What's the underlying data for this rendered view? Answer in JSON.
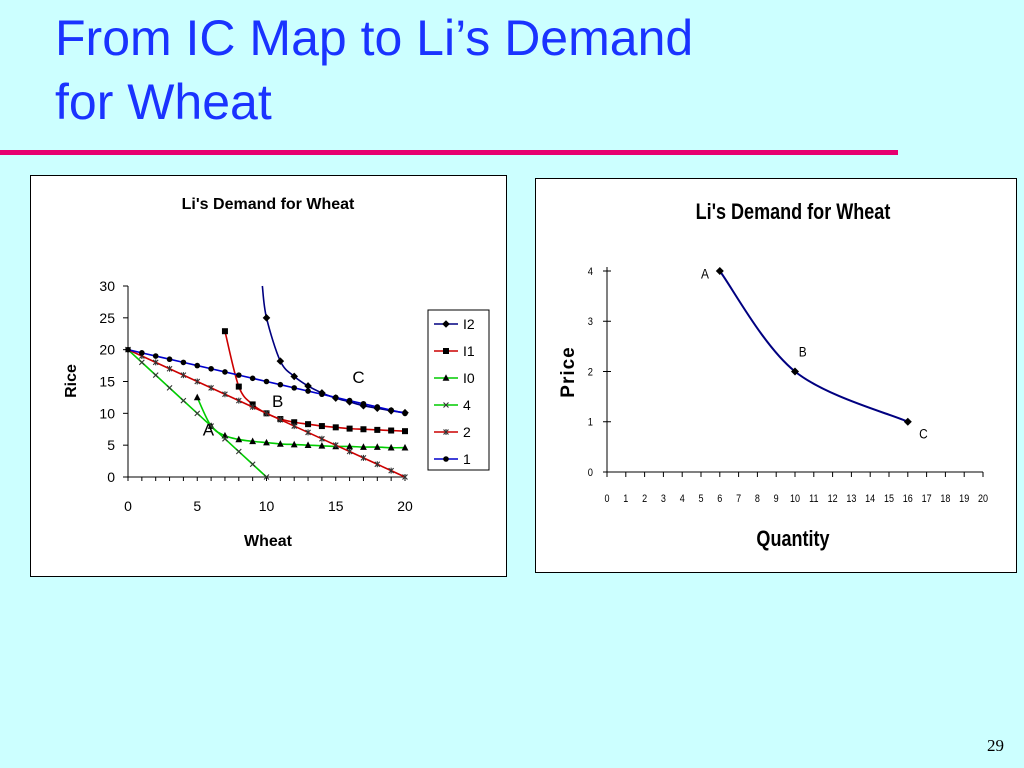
{
  "slide": {
    "title_line1": "From IC Map to Li’s Demand",
    "title_line2": "for Wheat",
    "page_number": "29",
    "title_color": "#1a33ff",
    "rule_color": "#e6006f",
    "background": "#ccffff"
  },
  "chart_data": [
    {
      "type": "line",
      "title": "Li's Demand for Wheat",
      "xlabel": "Wheat",
      "ylabel": "Rice",
      "xlim": [
        0,
        20
      ],
      "ylim": [
        0,
        30
      ],
      "xticks": [
        0,
        5,
        10,
        15,
        20
      ],
      "yticks": [
        0,
        5,
        10,
        15,
        20,
        25,
        30
      ],
      "legend": "right",
      "series": [
        {
          "name": "I2",
          "color": "#000080",
          "marker": "diamond",
          "smooth": true,
          "points": [
            [
              9.7,
              30
            ],
            [
              10,
              25
            ],
            [
              11,
              18.2
            ],
            [
              12,
              15.8
            ],
            [
              13,
              14.3
            ],
            [
              14,
              13.2
            ],
            [
              15,
              12.4
            ],
            [
              16,
              11.8
            ],
            [
              17,
              11.2
            ],
            [
              18,
              10.8
            ],
            [
              19,
              10.4
            ],
            [
              20,
              10.1
            ]
          ]
        },
        {
          "name": "I1",
          "color": "#cc0000",
          "marker": "square",
          "smooth": true,
          "points": [
            [
              7,
              22.9
            ],
            [
              8,
              14.2
            ],
            [
              9,
              11.4
            ],
            [
              10,
              10
            ],
            [
              11,
              9.1
            ],
            [
              12,
              8.6
            ],
            [
              13,
              8.3
            ],
            [
              14,
              8
            ],
            [
              15,
              7.8
            ],
            [
              16,
              7.6
            ],
            [
              17,
              7.5
            ],
            [
              18,
              7.4
            ],
            [
              19,
              7.3
            ],
            [
              20,
              7.2
            ]
          ]
        },
        {
          "name": "I0",
          "color": "#00cc00",
          "marker": "triangle",
          "smooth": true,
          "points": [
            [
              5,
              12.5
            ],
            [
              6,
              8
            ],
            [
              7,
              6.5
            ],
            [
              8,
              5.9
            ],
            [
              9,
              5.6
            ],
            [
              10,
              5.4
            ],
            [
              11,
              5.2
            ],
            [
              12,
              5.1
            ],
            [
              13,
              5
            ],
            [
              14,
              4.9
            ],
            [
              15,
              4.8
            ],
            [
              16,
              4.8
            ],
            [
              17,
              4.7
            ],
            [
              18,
              4.7
            ],
            [
              19,
              4.6
            ],
            [
              20,
              4.6
            ]
          ]
        },
        {
          "name": "4",
          "color": "#00cc00",
          "marker": "x",
          "smooth": false,
          "points": [
            [
              0,
              20
            ],
            [
              1,
              18
            ],
            [
              2,
              16
            ],
            [
              3,
              14
            ],
            [
              4,
              12
            ],
            [
              5,
              10
            ],
            [
              6,
              8
            ],
            [
              7,
              6
            ],
            [
              8,
              4
            ],
            [
              9,
              2
            ],
            [
              10,
              0
            ]
          ]
        },
        {
          "name": "2",
          "color": "#cc0000",
          "marker": "star",
          "smooth": false,
          "points": [
            [
              0,
              20
            ],
            [
              1,
              19
            ],
            [
              2,
              18
            ],
            [
              3,
              17
            ],
            [
              4,
              16
            ],
            [
              5,
              15
            ],
            [
              6,
              14
            ],
            [
              7,
              13
            ],
            [
              8,
              12
            ],
            [
              9,
              11
            ],
            [
              10,
              10
            ],
            [
              11,
              9
            ],
            [
              12,
              8
            ],
            [
              13,
              7
            ],
            [
              14,
              6
            ],
            [
              15,
              5
            ],
            [
              16,
              4
            ],
            [
              17,
              3
            ],
            [
              18,
              2
            ],
            [
              19,
              1
            ],
            [
              20,
              0
            ]
          ]
        },
        {
          "name": "1",
          "color": "#0000cc",
          "marker": "circle",
          "smooth": false,
          "points": [
            [
              0,
              20
            ],
            [
              1,
              19.5
            ],
            [
              2,
              19
            ],
            [
              3,
              18.5
            ],
            [
              4,
              18
            ],
            [
              5,
              17.5
            ],
            [
              6,
              17
            ],
            [
              7,
              16.5
            ],
            [
              8,
              16
            ],
            [
              9,
              15.5
            ],
            [
              10,
              15
            ],
            [
              11,
              14.5
            ],
            [
              12,
              14
            ],
            [
              13,
              13.5
            ],
            [
              14,
              13
            ],
            [
              15,
              12.5
            ],
            [
              16,
              12
            ],
            [
              17,
              11.5
            ],
            [
              18,
              11
            ],
            [
              19,
              10.5
            ],
            [
              20,
              10
            ]
          ]
        }
      ],
      "annotations": [
        {
          "text": "A",
          "x": 5.4,
          "y": 6.5
        },
        {
          "text": "B",
          "x": 10.4,
          "y": 11
        },
        {
          "text": "C",
          "x": 16.2,
          "y": 14.8
        }
      ]
    },
    {
      "type": "line",
      "title": "Li's Demand for Wheat",
      "xlabel": "Quantity",
      "ylabel": "Price",
      "xlim": [
        0,
        20
      ],
      "ylim": [
        0,
        4
      ],
      "xticks": [
        0,
        1,
        2,
        3,
        4,
        5,
        6,
        7,
        8,
        9,
        10,
        11,
        12,
        13,
        14,
        15,
        16,
        17,
        18,
        19,
        20
      ],
      "yticks": [
        0,
        1,
        2,
        3,
        4
      ],
      "series": [
        {
          "color": "#000080",
          "marker": "diamond",
          "smooth": true,
          "points": [
            [
              6,
              4
            ],
            [
              10,
              2
            ],
            [
              16,
              1
            ]
          ]
        }
      ],
      "annotations": [
        {
          "text": "A",
          "x": 5,
          "y": 3.85
        },
        {
          "text": "B",
          "x": 10.2,
          "y": 2.3
        },
        {
          "text": "C",
          "x": 16.6,
          "y": 0.67
        }
      ]
    }
  ]
}
